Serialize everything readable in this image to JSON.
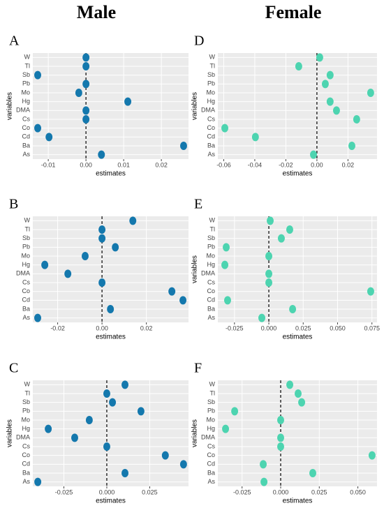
{
  "headers": {
    "male": "Male",
    "female": "Female"
  },
  "chart_data": [
    {
      "type": "dot",
      "label": "A",
      "xlabel": "estimates",
      "ylabel": "variables",
      "color": "#1478ad",
      "categories": [
        "W",
        "Tl",
        "Sb",
        "Pb",
        "Mo",
        "Hg",
        "DMA",
        "Cs",
        "Co",
        "Cd",
        "Ba",
        "As"
      ],
      "values": [
        0,
        0,
        -0.0128,
        0,
        -0.0019,
        0.0111,
        0,
        0,
        -0.0128,
        -0.0098,
        0.0259,
        0.0041
      ],
      "xlim": [
        -0.0141,
        0.0272
      ],
      "xticks": [
        -0.01,
        {
          "value": 0,
          "label": "0.00"
        },
        0.01,
        0.02
      ],
      "vline": 0,
      "grid": true
    },
    {
      "type": "dot",
      "label": "B",
      "xlabel": "estimates",
      "color": "#1478ad",
      "categories": [
        "W",
        "Tl",
        "Sb",
        "Pb",
        "Mo",
        "Hg",
        "DMA",
        "Cs",
        "Co",
        "Cd",
        "Ba",
        "As"
      ],
      "values": [
        0.0139,
        0,
        0,
        0.006,
        -0.0076,
        -0.0258,
        -0.0154,
        0,
        0.0315,
        0.0365,
        0.0038,
        -0.029
      ],
      "xlim": [
        -0.0312,
        0.039
      ],
      "xticks": [
        -0.02,
        {
          "value": 0,
          "label": "0.00"
        },
        0.02
      ],
      "vline": 0,
      "grid": true
    },
    {
      "type": "dot",
      "label": "C",
      "xlabel": "estimates",
      "ylabel": "variables",
      "color": "#1478ad",
      "categories": [
        "W",
        "Tl",
        "Sb",
        "Pb",
        "Mo",
        "Hg",
        "DMA",
        "Cs",
        "Co",
        "Cd",
        "Ba",
        "As"
      ],
      "values": [
        0.0106,
        0,
        0.0033,
        0.0199,
        -0.0102,
        -0.0341,
        -0.0187,
        0,
        0.0341,
        0.0447,
        0.0106,
        -0.0402
      ],
      "xlim": [
        -0.0431,
        0.0476
      ],
      "xticks": [
        -0.025,
        {
          "value": 0,
          "label": "0.000"
        },
        0.025
      ],
      "vline": 0,
      "grid": true
    },
    {
      "type": "dot",
      "label": "D",
      "xlabel": "estimates",
      "ylabel": "variables",
      "color": "#4dd4b0",
      "categories": [
        "W",
        "Tl",
        "Sb",
        "Pb",
        "Mo",
        "Hg",
        "DMA",
        "Cs",
        "Co",
        "Cd",
        "Ba",
        "As"
      ],
      "values": [
        0.0018,
        -0.0117,
        0.0085,
        0.0054,
        0.0346,
        0.0085,
        0.0126,
        0.0256,
        -0.0593,
        -0.0396,
        0.0225,
        -0.0022
      ],
      "xlim": [
        -0.0638,
        0.0387
      ],
      "xticks": [
        -0.06,
        -0.04,
        -0.02,
        {
          "value": 0,
          "label": "0.00"
        },
        0.02
      ],
      "vline": 0,
      "grid": true
    },
    {
      "type": "dot",
      "label": "E",
      "xlabel": "estimates",
      "ylabel": "variables",
      "color": "#4dd4b0",
      "categories": [
        "W",
        "Tl",
        "Sb",
        "Pb",
        "Mo",
        "Hg",
        "DMA",
        "Cs",
        "Co",
        "Cd",
        "Ba",
        "As"
      ],
      "values": [
        0.001,
        0.0152,
        0.0091,
        -0.031,
        0,
        -0.032,
        0,
        0,
        0.0741,
        -0.03,
        0.0173,
        -0.0051
      ],
      "xlim": [
        -0.0371,
        0.0787
      ],
      "xticks": [
        -0.025,
        {
          "value": 0,
          "label": "0.000"
        },
        0.025,
        {
          "value": 0.05,
          "label": "0.050"
        },
        0.075
      ],
      "vline": 0,
      "grid": true
    },
    {
      "type": "dot",
      "label": "F",
      "xlabel": "estimates",
      "ylabel": "variables",
      "color": "#4dd4b0",
      "categories": [
        "W",
        "Tl",
        "Sb",
        "Pb",
        "Mo",
        "Hg",
        "DMA",
        "Cs",
        "Co",
        "Cd",
        "Ba",
        "As"
      ],
      "values": [
        0.0059,
        0.0113,
        0.0136,
        -0.0298,
        0,
        -0.0357,
        0,
        0,
        0.0592,
        -0.0113,
        0.0208,
        -0.0108
      ],
      "xlim": [
        -0.0407,
        0.0624
      ],
      "xticks": [
        -0.025,
        {
          "value": 0,
          "label": "0.000"
        },
        0.025,
        {
          "value": 0.05,
          "label": "0.050"
        }
      ],
      "vline": 0,
      "grid": true
    }
  ]
}
